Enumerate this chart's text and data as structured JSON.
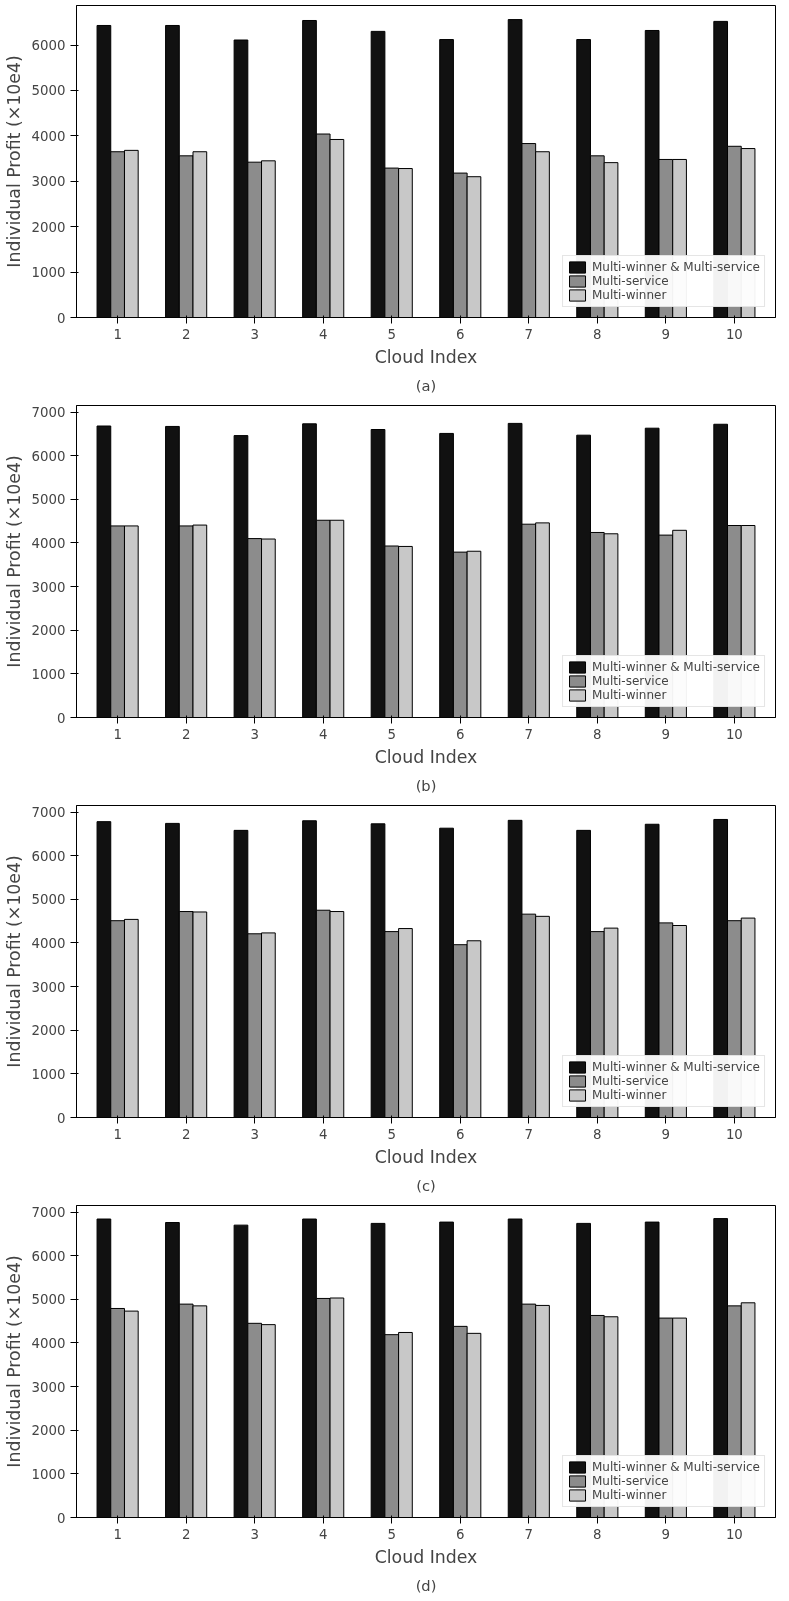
{
  "chart_data": [
    {
      "type": "bar",
      "categories": [
        "1",
        "2",
        "3",
        "4",
        "5",
        "6",
        "7",
        "8",
        "9",
        "10"
      ],
      "ylabel": "Individual Profit (×10e4)",
      "xlabel": "Cloud Index",
      "annotations": [
        "(a)"
      ],
      "ylim": [
        0,
        6870
      ],
      "yticks": [
        0,
        1000,
        2000,
        3000,
        4000,
        5000,
        6000
      ],
      "grid": false,
      "legend": "bottom right",
      "series": [
        {
          "name": "Multi-winner & Multi-service",
          "color": "#111111",
          "values": [
            6430,
            6430,
            6110,
            6540,
            6300,
            6120,
            6560,
            6120,
            6320,
            6520
          ]
        },
        {
          "name": "Multi-service",
          "color": "#8c8c8c",
          "values": [
            3650,
            3560,
            3420,
            4040,
            3290,
            3180,
            3830,
            3560,
            3480,
            3770
          ]
        },
        {
          "name": "Multi-winner",
          "color": "#c8c8c8",
          "values": [
            3680,
            3650,
            3450,
            3920,
            3280,
            3100,
            3650,
            3410,
            3480,
            3720
          ]
        }
      ]
    },
    {
      "type": "bar",
      "categories": [
        "1",
        "2",
        "3",
        "4",
        "5",
        "6",
        "7",
        "8",
        "9",
        "10"
      ],
      "ylabel": "Individual Profit (×10e4)",
      "xlabel": "Cloud Index",
      "annotations": [
        "(b)"
      ],
      "ylim": [
        0,
        7150
      ],
      "yticks": [
        0,
        1000,
        2000,
        3000,
        4000,
        5000,
        6000,
        7000
      ],
      "grid": false,
      "legend": "bottom right",
      "series": [
        {
          "name": "Multi-winner & Multi-service",
          "color": "#111111",
          "values": [
            6680,
            6670,
            6460,
            6730,
            6600,
            6510,
            6740,
            6470,
            6630,
            6720
          ]
        },
        {
          "name": "Multi-service",
          "color": "#8c8c8c",
          "values": [
            4390,
            4390,
            4100,
            4520,
            3930,
            3790,
            4430,
            4240,
            4180,
            4400
          ]
        },
        {
          "name": "Multi-winner",
          "color": "#c8c8c8",
          "values": [
            4390,
            4410,
            4090,
            4520,
            3920,
            3810,
            4460,
            4210,
            4290,
            4400
          ]
        }
      ]
    },
    {
      "type": "bar",
      "categories": [
        "1",
        "2",
        "3",
        "4",
        "5",
        "6",
        "7",
        "8",
        "9",
        "10"
      ],
      "ylabel": "Individual Profit (×10e4)",
      "xlabel": "Cloud Index",
      "annotations": [
        "(c)"
      ],
      "ylim": [
        0,
        7150
      ],
      "yticks": [
        0,
        1000,
        2000,
        3000,
        4000,
        5000,
        6000,
        7000
      ],
      "grid": false,
      "legend": "bottom right",
      "series": [
        {
          "name": "Multi-winner & Multi-service",
          "color": "#111111",
          "values": [
            6780,
            6740,
            6580,
            6800,
            6730,
            6630,
            6810,
            6580,
            6720,
            6830
          ]
        },
        {
          "name": "Multi-service",
          "color": "#8c8c8c",
          "values": [
            4510,
            4720,
            4210,
            4750,
            4260,
            3960,
            4660,
            4260,
            4460,
            4510
          ]
        },
        {
          "name": "Multi-winner",
          "color": "#c8c8c8",
          "values": [
            4540,
            4710,
            4230,
            4720,
            4330,
            4050,
            4610,
            4340,
            4400,
            4570
          ]
        }
      ]
    },
    {
      "type": "bar",
      "categories": [
        "1",
        "2",
        "3",
        "4",
        "5",
        "6",
        "7",
        "8",
        "9",
        "10"
      ],
      "ylabel": "Individual Profit (×10e4)",
      "xlabel": "Cloud Index",
      "annotations": [
        "(d)"
      ],
      "ylim": [
        0,
        7150
      ],
      "yticks": [
        0,
        1000,
        2000,
        3000,
        4000,
        5000,
        6000,
        7000
      ],
      "grid": false,
      "legend": "bottom right",
      "series": [
        {
          "name": "Multi-winner & Multi-service",
          "color": "#111111",
          "values": [
            6840,
            6760,
            6700,
            6840,
            6740,
            6770,
            6840,
            6740,
            6770,
            6850
          ]
        },
        {
          "name": "Multi-service",
          "color": "#8c8c8c",
          "values": [
            4790,
            4890,
            4450,
            5020,
            4190,
            4380,
            4890,
            4630,
            4570,
            4850
          ]
        },
        {
          "name": "Multi-winner",
          "color": "#c8c8c8",
          "values": [
            4730,
            4850,
            4420,
            5030,
            4240,
            4220,
            4860,
            4600,
            4570,
            4920
          ]
        }
      ]
    }
  ]
}
